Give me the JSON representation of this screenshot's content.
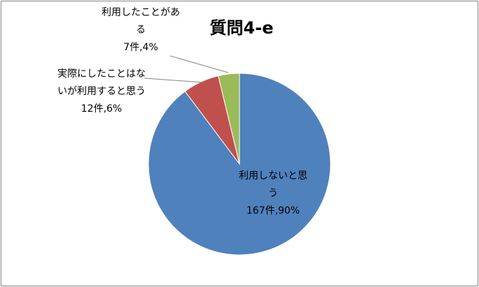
{
  "chart_data": {
    "type": "pie",
    "title": "質問4-e",
    "categories": [
      "利用しないと思う",
      "実際にしたことはないが利用すると思う",
      "利用したことがある"
    ],
    "values": [
      167,
      12,
      7
    ],
    "value_labels": [
      "167件,90%",
      "12件,6%",
      "7件,4%"
    ],
    "colors": [
      "#4f81bd",
      "#c0504d",
      "#9bbb59"
    ]
  }
}
